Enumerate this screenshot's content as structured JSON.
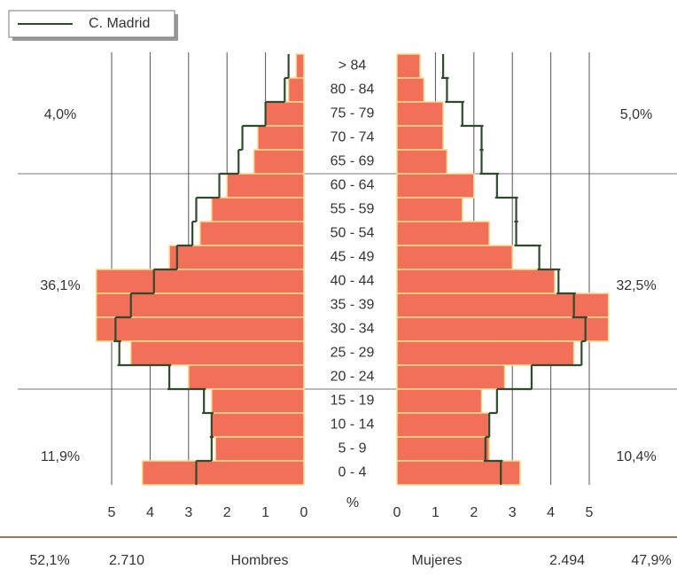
{
  "chart_data": {
    "type": "pyramid",
    "categories": [
      "> 84",
      "80 - 84",
      "75 - 79",
      "70 - 74",
      "65 - 69",
      "60 - 64",
      "55 - 59",
      "50 - 54",
      "45 - 49",
      "40 - 44",
      "35 - 39",
      "30 - 34",
      "25 - 29",
      "20 - 24",
      "15 - 19",
      "10 - 14",
      "5 - 9",
      "0 - 4"
    ],
    "series": [
      {
        "name": "Hombres",
        "color": "#f2705a",
        "values": [
          0.2,
          0.4,
          1.0,
          1.2,
          1.3,
          2.0,
          2.4,
          2.7,
          3.5,
          5.4,
          5.4,
          5.4,
          4.5,
          3.0,
          2.4,
          2.4,
          2.3,
          4.2
        ]
      },
      {
        "name": "Mujeres",
        "color": "#f2705a",
        "values": [
          0.6,
          0.7,
          1.2,
          1.2,
          1.3,
          2.0,
          1.7,
          2.4,
          3.0,
          4.1,
          5.5,
          5.5,
          4.6,
          2.8,
          2.2,
          2.4,
          2.4,
          3.2
        ]
      }
    ],
    "reference": {
      "name": "C. Madrid",
      "color": "#2f4a2c",
      "left": [
        0.4,
        0.5,
        1.0,
        1.6,
        1.7,
        2.2,
        2.8,
        2.9,
        3.3,
        3.9,
        4.5,
        4.9,
        4.8,
        3.5,
        2.6,
        2.4,
        2.4,
        2.8
      ],
      "right": [
        1.2,
        1.3,
        1.7,
        2.2,
        2.2,
        2.6,
        3.1,
        3.1,
        3.7,
        4.2,
        4.6,
        4.9,
        4.8,
        3.5,
        2.6,
        2.4,
        2.3,
        2.7
      ]
    },
    "xlabel": "%",
    "xlim": [
      0,
      5.5
    ],
    "xticks": [
      0,
      1,
      2,
      3,
      4,
      5
    ],
    "annotations_left": [
      "4,0%",
      "36,1%",
      "11,9%"
    ],
    "annotations_right": [
      "5,0%",
      "32,5%",
      "10,4%"
    ],
    "footer": {
      "left_percent": "52,1%",
      "left_total": "2.710",
      "left_label": "Hombres",
      "right_label": "Mujeres",
      "right_total": "2.494",
      "right_percent": "47,9%"
    }
  }
}
